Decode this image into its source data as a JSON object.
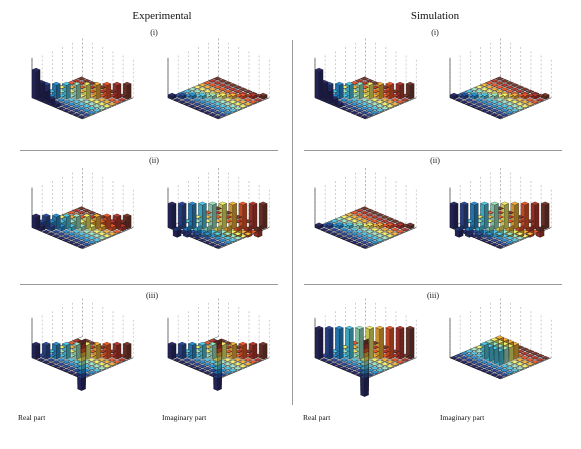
{
  "titles": {
    "experimental": "Experimental",
    "simulation": "Simulation"
  },
  "row_labels": [
    "(i)",
    "(ii)",
    "(iii)"
  ],
  "footers": {
    "real": "Real part",
    "imaginary": "Imaginary part"
  },
  "colors": {
    "palette": [
      "#2b2a6a",
      "#2e4c9c",
      "#2b8fd3",
      "#4ec9e8",
      "#9fe6c5",
      "#f2f06a",
      "#f7b23a",
      "#ee5a2a",
      "#b83a30",
      "#7a3a2f"
    ],
    "separator": "#9a9a9a"
  },
  "chart_data": [
    {
      "type": "bar3d",
      "panel": "experimental-i-real",
      "peak": "left-front"
    },
    {
      "type": "bar3d",
      "panel": "experimental-i-imag",
      "peak": "flat"
    },
    {
      "type": "bar3d",
      "panel": "simulation-i-real",
      "peak": "left-front"
    },
    {
      "type": "bar3d",
      "panel": "simulation-i-imag",
      "peak": "flat"
    },
    {
      "type": "bar3d",
      "panel": "experimental-ii-real",
      "peak": "ridge"
    },
    {
      "type": "bar3d",
      "panel": "experimental-ii-imag",
      "peak": "ridge-high"
    },
    {
      "type": "bar3d",
      "panel": "simulation-ii-real",
      "peak": "flat"
    },
    {
      "type": "bar3d",
      "panel": "simulation-ii-imag",
      "peak": "ridge-high"
    },
    {
      "type": "bar3d",
      "panel": "experimental-iii-real",
      "peak": "cross"
    },
    {
      "type": "bar3d",
      "panel": "experimental-iii-imag",
      "peak": "cross"
    },
    {
      "type": "bar3d",
      "panel": "simulation-iii-real",
      "peak": "cross-high"
    },
    {
      "type": "bar3d",
      "panel": "simulation-iii-imag",
      "peak": "center"
    }
  ]
}
